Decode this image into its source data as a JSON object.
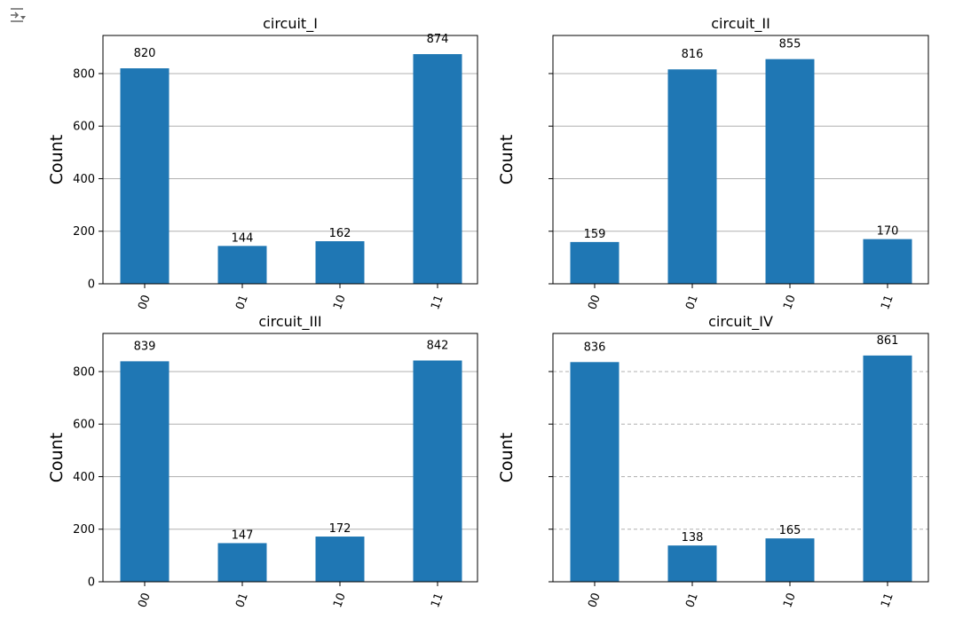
{
  "toolbar": {
    "icon": "output-toggle-icon"
  },
  "chart_data": [
    {
      "type": "bar",
      "title": "circuit_I",
      "ylabel": "Count",
      "xlabel": "",
      "categories": [
        "00",
        "01",
        "10",
        "11"
      ],
      "values": [
        820,
        144,
        162,
        874
      ],
      "data_labels": [
        "820",
        "144",
        "162",
        "874"
      ],
      "yticks": [
        0,
        200,
        400,
        600,
        800
      ],
      "ylim": [
        0,
        945
      ],
      "grid": "y-solid",
      "show_ytick_labels": true,
      "color": "#1f77b4"
    },
    {
      "type": "bar",
      "title": "circuit_II",
      "ylabel": "Count",
      "xlabel": "",
      "categories": [
        "00",
        "01",
        "10",
        "11"
      ],
      "values": [
        159,
        816,
        855,
        170
      ],
      "data_labels": [
        "159",
        "816",
        "855",
        "170"
      ],
      "yticks": [
        0,
        200,
        400,
        600,
        800
      ],
      "ylim": [
        0,
        945
      ],
      "grid": "y-solid",
      "show_ytick_labels": false,
      "color": "#1f77b4"
    },
    {
      "type": "bar",
      "title": "circuit_III",
      "ylabel": "Count",
      "xlabel": "",
      "categories": [
        "00",
        "01",
        "10",
        "11"
      ],
      "values": [
        839,
        147,
        172,
        842
      ],
      "data_labels": [
        "839",
        "147",
        "172",
        "842"
      ],
      "yticks": [
        0,
        200,
        400,
        600,
        800
      ],
      "ylim": [
        0,
        945
      ],
      "grid": "y-solid",
      "show_ytick_labels": true,
      "color": "#1f77b4"
    },
    {
      "type": "bar",
      "title": "circuit_IV",
      "ylabel": "Count",
      "xlabel": "",
      "categories": [
        "00",
        "01",
        "10",
        "11"
      ],
      "values": [
        836,
        138,
        165,
        861
      ],
      "data_labels": [
        "836",
        "138",
        "165",
        "861"
      ],
      "yticks": [
        0,
        200,
        400,
        600,
        800
      ],
      "ylim": [
        0,
        945
      ],
      "grid": "y-dashed",
      "show_ytick_labels": false,
      "color": "#1f77b4"
    }
  ]
}
